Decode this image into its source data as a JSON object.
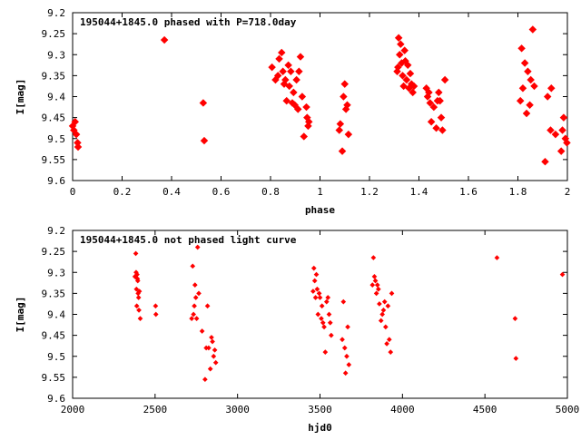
{
  "chart_data": [
    {
      "type": "scatter",
      "title": "195044+1845.0 phased with P=718.0day",
      "xlabel": "phase",
      "ylabel": "I[mag]",
      "xlim": [
        0,
        2
      ],
      "ylim": [
        9.6,
        9.2
      ],
      "y_inverted": true,
      "grid": false,
      "x_ticks": [
        "0",
        "0.2",
        "0.4",
        "0.6",
        "0.8",
        "1",
        "1.2",
        "1.4",
        "1.6",
        "1.8",
        "2"
      ],
      "x_tick_values": [
        0,
        0.2,
        0.4,
        0.6,
        0.8,
        1.0,
        1.2,
        1.4,
        1.6,
        1.8,
        2.0
      ],
      "y_ticks": [
        "9.2",
        "9.25",
        "9.3",
        "9.35",
        "9.4",
        "9.45",
        "9.5",
        "9.55",
        "9.6"
      ],
      "y_tick_values": [
        9.2,
        9.25,
        9.3,
        9.35,
        9.4,
        9.45,
        9.5,
        9.55,
        9.6
      ],
      "marker_color": "#ff0000",
      "series": [
        {
          "x": [
            0.0,
            0.005,
            0.01,
            0.015,
            0.02,
            0.022,
            0.371,
            0.528,
            0.532,
            0.806,
            0.82,
            0.83,
            0.835,
            0.845,
            0.85,
            0.855,
            0.86,
            0.865,
            0.872,
            0.876,
            0.882,
            0.888,
            0.893,
            0.898,
            0.905,
            0.911,
            0.915,
            0.921,
            0.928,
            0.935,
            0.945,
            0.948,
            0.952,
            0.955,
            1.078,
            1.082,
            1.09,
            1.095,
            1.1,
            1.105,
            1.11,
            1.115,
            1.312,
            1.315,
            1.318,
            1.322,
            1.326,
            1.33,
            1.334,
            1.338,
            1.342,
            1.345,
            1.35,
            1.355,
            1.36,
            1.365,
            1.37,
            1.375,
            1.38,
            1.43,
            1.435,
            1.44,
            1.445,
            1.45,
            1.46,
            1.47,
            1.475,
            1.48,
            1.485,
            1.49,
            1.495,
            1.505,
            1.81,
            1.815,
            1.82,
            1.828,
            1.835,
            1.84,
            1.848,
            1.852,
            1.86,
            1.866,
            1.91,
            1.92,
            1.932,
            1.935,
            1.952,
            1.975,
            1.98,
            1.985,
            1.992,
            1.998
          ],
          "y": [
            9.47,
            9.48,
            9.46,
            9.49,
            9.51,
            9.52,
            9.265,
            9.415,
            9.505,
            9.33,
            9.36,
            9.35,
            9.31,
            9.295,
            9.34,
            9.37,
            9.36,
            9.41,
            9.325,
            9.375,
            9.34,
            9.415,
            9.39,
            9.42,
            9.36,
            9.43,
            9.34,
            9.305,
            9.4,
            9.495,
            9.425,
            9.45,
            9.47,
            9.46,
            9.48,
            9.465,
            9.53,
            9.4,
            9.37,
            9.43,
            9.42,
            9.49,
            9.34,
            9.33,
            9.26,
            9.3,
            9.275,
            9.32,
            9.35,
            9.375,
            9.29,
            9.315,
            9.36,
            9.325,
            9.38,
            9.345,
            9.37,
            9.39,
            9.375,
            9.38,
            9.4,
            9.39,
            9.415,
            9.46,
            9.425,
            9.475,
            9.41,
            9.39,
            9.41,
            9.45,
            9.48,
            9.36,
            9.41,
            9.285,
            9.38,
            9.32,
            9.44,
            9.34,
            9.42,
            9.36,
            9.24,
            9.375,
            9.555,
            9.4,
            9.48,
            9.38,
            9.49,
            9.53,
            9.48,
            9.45,
            9.5,
            9.51
          ]
        }
      ]
    },
    {
      "type": "scatter",
      "title": "195044+1845.0 not phased light curve",
      "xlabel": "hjd0",
      "ylabel": "I[mag]",
      "xlim": [
        2000,
        5000
      ],
      "ylim": [
        9.6,
        9.2
      ],
      "y_inverted": true,
      "grid": false,
      "x_ticks": [
        "2000",
        "2500",
        "3000",
        "3500",
        "4000",
        "4500",
        "5000"
      ],
      "x_tick_values": [
        2000,
        2500,
        3000,
        3500,
        4000,
        4500,
        5000
      ],
      "y_ticks": [
        "9.2",
        "9.25",
        "9.3",
        "9.35",
        "9.4",
        "9.45",
        "9.5",
        "9.55",
        "9.6"
      ],
      "y_tick_values": [
        9.2,
        9.25,
        9.3,
        9.35,
        9.4,
        9.45,
        9.5,
        9.55,
        9.6
      ],
      "marker_color": "#ff0000",
      "series": [
        {
          "x": [
            2378,
            2383,
            2385,
            2387,
            2389,
            2391,
            2393,
            2395,
            2397,
            2400,
            2402,
            2405,
            2410,
            2503,
            2505,
            2722,
            2728,
            2733,
            2738,
            2742,
            2747,
            2752,
            2758,
            2765,
            2785,
            2803,
            2810,
            2818,
            2825,
            2835,
            2842,
            2848,
            2855,
            2862,
            2868,
            3458,
            3463,
            3468,
            3473,
            3478,
            3483,
            3488,
            3495,
            3500,
            3508,
            3512,
            3518,
            3525,
            3532,
            3540,
            3548,
            3555,
            3562,
            3568,
            3635,
            3642,
            3650,
            3655,
            3662,
            3668,
            3675,
            3818,
            3824,
            3830,
            3836,
            3842,
            3848,
            3854,
            3860,
            3870,
            3878,
            3885,
            3892,
            3898,
            3905,
            3912,
            3920,
            3928,
            3935,
            4573,
            4683,
            4688,
            4970
          ],
          "y": [
            9.31,
            9.255,
            9.3,
            9.34,
            9.38,
            9.305,
            9.315,
            9.32,
            9.35,
            9.36,
            9.39,
            9.345,
            9.41,
            9.38,
            9.4,
            9.41,
            9.285,
            9.4,
            9.38,
            9.33,
            9.36,
            9.41,
            9.24,
            9.35,
            9.44,
            9.555,
            9.48,
            9.38,
            9.48,
            9.53,
            9.455,
            9.465,
            9.5,
            9.485,
            9.515,
            9.345,
            9.29,
            9.32,
            9.36,
            9.305,
            9.34,
            9.4,
            9.35,
            9.36,
            9.41,
            9.38,
            9.42,
            9.43,
            9.49,
            9.37,
            9.36,
            9.4,
            9.42,
            9.45,
            9.46,
            9.37,
            9.48,
            9.54,
            9.5,
            9.43,
            9.52,
            9.33,
            9.265,
            9.31,
            9.32,
            9.35,
            9.33,
            9.34,
            9.375,
            9.415,
            9.4,
            9.39,
            9.37,
            9.43,
            9.47,
            9.38,
            9.46,
            9.49,
            9.35,
            9.265,
            9.41,
            9.505,
            9.305
          ]
        }
      ]
    }
  ]
}
